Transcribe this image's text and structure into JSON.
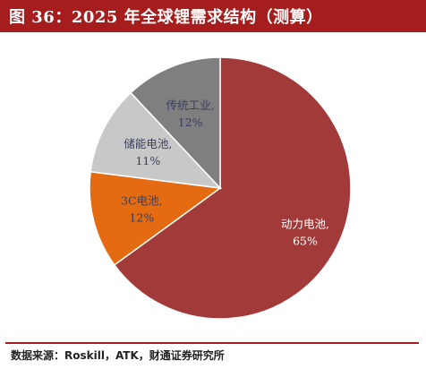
{
  "header": {
    "title": "图 36：2025 年全球锂需求结构（测算）"
  },
  "chart_data": {
    "type": "pie",
    "title": "",
    "slices": [
      {
        "label": "动力电池,",
        "percent_label": "65%",
        "value": 65,
        "color": "#a23a3a",
        "text_color": "#ffffff"
      },
      {
        "label": "3C电池,",
        "percent_label": "12%",
        "value": 12,
        "color": "#e56b12",
        "text_color": "#3a3f5a"
      },
      {
        "label": "储能电池,",
        "percent_label": "11%",
        "value": 11,
        "color": "#c8c8c8",
        "text_color": "#3a3f5a"
      },
      {
        "label": "传统工业,",
        "percent_label": "12%",
        "value": 12,
        "color": "#7f7f7f",
        "text_color": "#3a3f5a"
      }
    ],
    "start": "12 o'clock",
    "direction": "clockwise",
    "legend": "none"
  },
  "footer": {
    "source": "数据来源：Roskill，ATK，财通证券研究所"
  }
}
